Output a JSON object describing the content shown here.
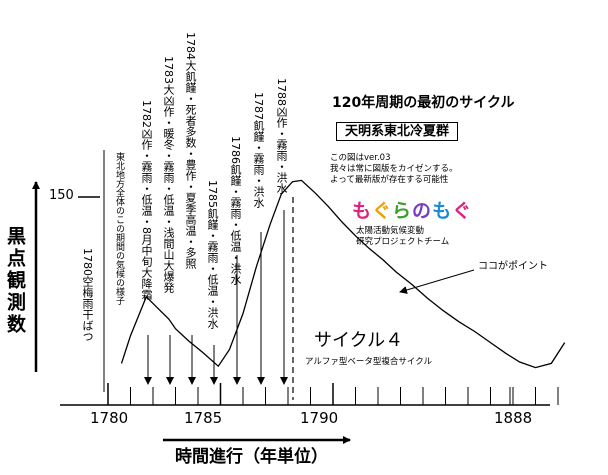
{
  "chart_data": {
    "type": "line",
    "title": "120年周期の最初のサイクル",
    "subtitle": "天明系東北冷夏群",
    "xlabel": "時間進行（年単位）",
    "ylabel": "黒点観測数",
    "xticks": [
      "1780",
      "1785",
      "1790",
      "1888"
    ],
    "ytick": "150",
    "series": [
      {
        "name": "サイクル４",
        "x": [
          1780.6,
          1781.0,
          1781.7,
          1782.2,
          1782.7,
          1783.0,
          1783.6,
          1784.2,
          1784.9,
          1785.4,
          1786.0,
          1786.6,
          1787.2,
          1787.7,
          1788.2,
          1788.6,
          1789.2,
          1789.8,
          1790.4,
          1791.0,
          1791.6,
          1792.2,
          1792.8,
          1793.5,
          1794.2,
          1794.9,
          1795.6,
          1796.3,
          1797.0,
          1797.7,
          1798.3,
          1799.0,
          1799.7,
          1800.3
        ],
        "y": [
          30,
          50,
          78,
          70,
          62,
          55,
          46,
          38,
          28,
          40,
          66,
          100,
          130,
          152,
          161,
          162,
          153,
          143,
          132,
          122,
          113,
          105,
          96,
          87,
          77,
          68,
          60,
          53,
          45,
          37,
          31,
          27,
          30,
          45
        ]
      }
    ]
  },
  "cycle_label": "サイクル４",
  "cycle_sublabel": "アルファ型ベータ型複合サイクル",
  "point_label": "ココがポイント",
  "notes": [
    "この図はver.03",
    "我々は常に図版をカイゼンする。",
    "よって最新版が存在する可能性"
  ],
  "logo_chars": [
    "も",
    "ぐ",
    "ら",
    "の",
    "も",
    "ぐ"
  ],
  "logo_colors": [
    "#e0207a",
    "#f2a000",
    "#3aa02a",
    "#7a3cc0",
    "#1e8ad2",
    "#e0207a"
  ],
  "logo_caption": [
    "太陽活動気候変動",
    "研究プロジェクトチーム"
  ],
  "events": [
    {
      "year": "1780",
      "text": "1780空梅雨干ばつ"
    },
    {
      "year": "1782",
      "text": "1782凶作・霧雨・低温・8月中旬大降霜"
    },
    {
      "year": "1783",
      "text": "1783大凶作・暖冬・霧雨・低温・浅間山大爆発"
    },
    {
      "year": "1784",
      "text": "1784大飢饉・死者多数・豊作・夏季高温・多照"
    },
    {
      "year": "1785",
      "text": "1785飢饉・霧雨・低温・洪水"
    },
    {
      "year": "1786",
      "text": "1786飢饉・霧雨・低温・洪水"
    },
    {
      "year": "1787",
      "text": "1787飢饉・霧雨・洪水"
    },
    {
      "year": "1788",
      "text": "1788凶作・霧雨・洪水"
    }
  ],
  "note_tohoku": "東北地方全体のこの期間の気候の様子"
}
